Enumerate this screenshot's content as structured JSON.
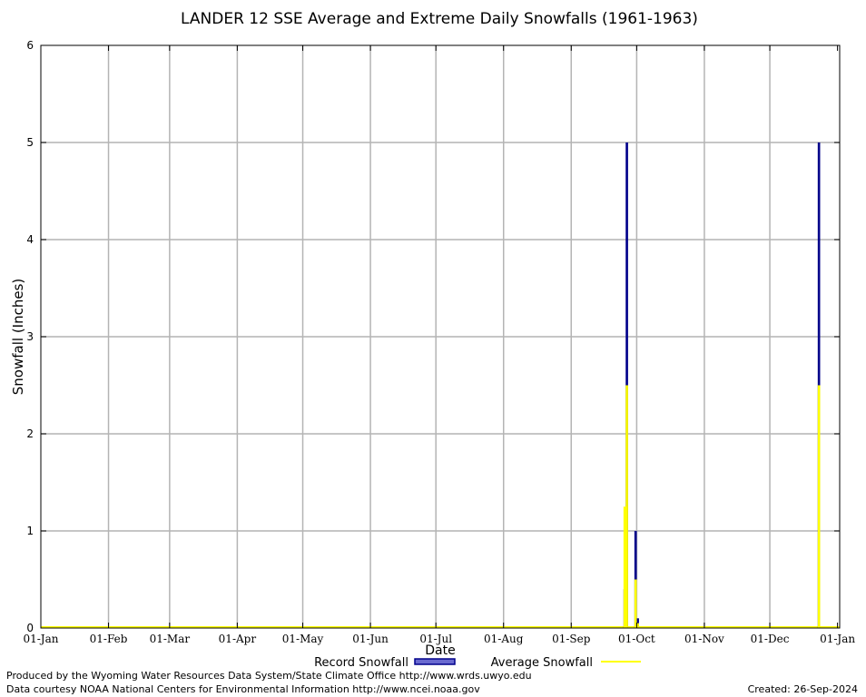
{
  "chart_data": {
    "type": "bar",
    "title": "LANDER 12 SSE Average and Extreme Daily Snowfalls (1961-1963)",
    "xlabel": "Date",
    "ylabel": "Snowfall (Inches)",
    "ylim": [
      0,
      6
    ],
    "yticks": [
      "0",
      "1",
      "2",
      "3",
      "4",
      "5",
      "6"
    ],
    "xlim_days": [
      0,
      366
    ],
    "xticks": [
      "01-Jan",
      "01-Feb",
      "01-Mar",
      "01-Apr",
      "01-May",
      "01-Jun",
      "01-Jul",
      "01-Aug",
      "01-Sep",
      "01-Oct",
      "01-Nov",
      "01-Dec",
      "01-Jan"
    ],
    "grid": true,
    "legend_position": "bottom",
    "series": [
      {
        "name": "Record Snowfall",
        "color": "#00008b",
        "points": [
          {
            "date": "25-Sep",
            "value": 0.4
          },
          {
            "date": "26-Sep",
            "value": 5.0
          },
          {
            "date": "30-Sep",
            "value": 1.0
          },
          {
            "date": "01-Oct",
            "value": 0.1
          },
          {
            "date": "23-Dec",
            "value": 5.0
          }
        ]
      },
      {
        "name": "Average Snowfall",
        "color": "#ffff00",
        "points": [
          {
            "date": "25-Sep",
            "value": 1.25
          },
          {
            "date": "26-Sep",
            "value": 2.5
          },
          {
            "date": "30-Sep",
            "value": 0.5
          },
          {
            "date": "01-Oct",
            "value": 0.05
          },
          {
            "date": "23-Dec",
            "value": 2.5
          }
        ]
      }
    ]
  },
  "footer": {
    "line1": "Produced by the Wyoming Water Resources Data System/State Climate Office http://www.wrds.uwyo.edu",
    "line2": "Data courtesy NOAA National Centers for Environmental Information http://www.ncei.noaa.gov",
    "created": "Created:  26-Sep-2024"
  }
}
